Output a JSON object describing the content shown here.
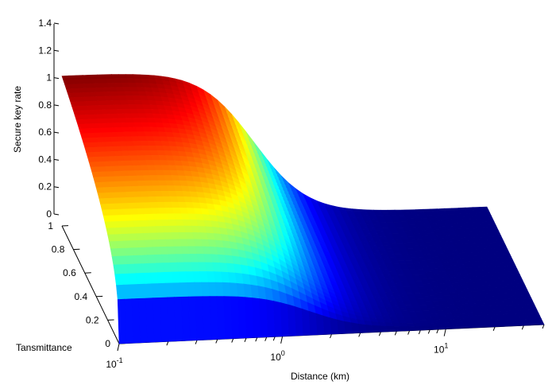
{
  "chart_data": {
    "type": "surface",
    "title": "",
    "xlabel": "Distance (km)",
    "ylabel": "Tansmittance",
    "zlabel": "Secure key rate",
    "x_scale": "log",
    "x_ticks": [
      {
        "base": "10",
        "exp": "-1",
        "value": 0.1
      },
      {
        "base": "10",
        "exp": "0",
        "value": 1
      },
      {
        "base": "10",
        "exp": "1",
        "value": 10
      }
    ],
    "y_ticks": [
      "0",
      "0.2",
      "0.4",
      "0.6",
      "0.8",
      "1"
    ],
    "z_ticks": [
      "0",
      "0.2",
      "0.4",
      "0.6",
      "0.8",
      "1",
      "1.2",
      "1.4"
    ],
    "xlim": [
      0.1,
      40
    ],
    "ylim": [
      0,
      1
    ],
    "zlim": [
      0,
      1.4
    ],
    "colormap": "jet",
    "surface": {
      "description_values": "Key rate decreases with distance and with lower transmittance",
      "max_value": 1.1,
      "knee_distance_km": 1.5
    }
  }
}
